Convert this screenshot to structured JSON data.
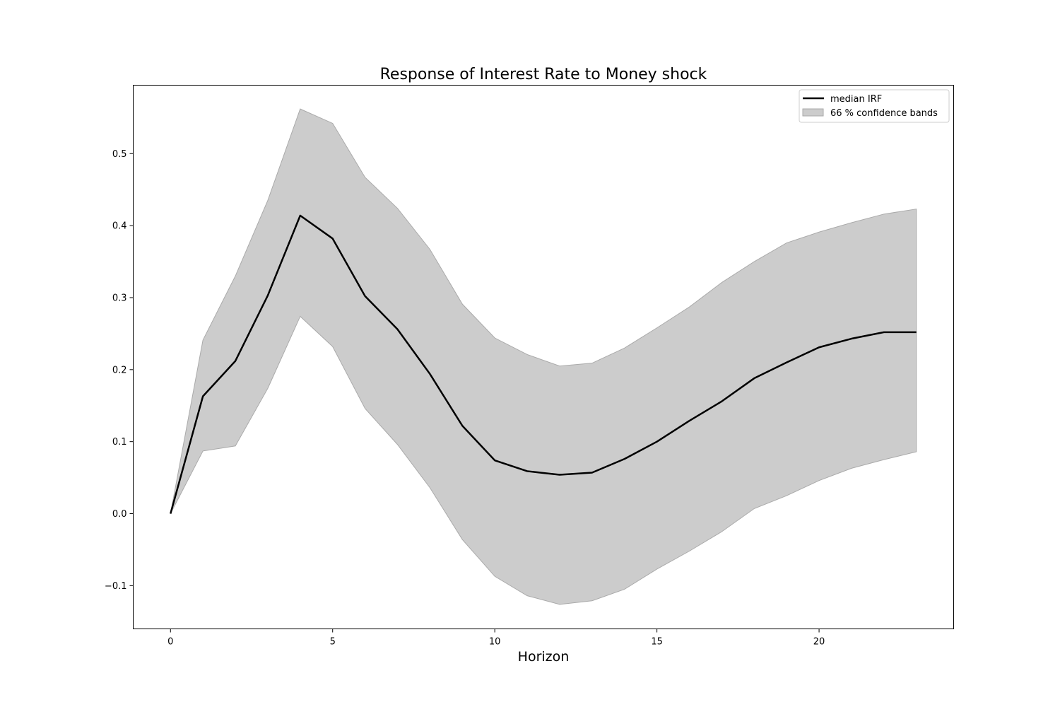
{
  "chart_data": {
    "type": "line",
    "title": "Response of Interest Rate to Money shock",
    "xlabel": "Horizon",
    "ylabel": "",
    "xlim": [
      -1.15,
      24.15
    ],
    "ylim": [
      -0.16,
      0.595
    ],
    "xticks": [
      0,
      5,
      10,
      15,
      20
    ],
    "yticks": [
      -0.1,
      0.0,
      0.1,
      0.2,
      0.3,
      0.4,
      0.5
    ],
    "ytick_labels": [
      "−0.1",
      "0.0",
      "0.1",
      "0.2",
      "0.3",
      "0.4",
      "0.5"
    ],
    "grid": false,
    "legend_position": "top-right",
    "x": [
      0,
      1,
      2,
      3,
      4,
      5,
      6,
      7,
      8,
      9,
      10,
      11,
      12,
      13,
      14,
      15,
      16,
      17,
      18,
      19,
      20,
      21,
      22,
      23
    ],
    "series": [
      {
        "name": "median IRF",
        "color": "#000000",
        "values": [
          0.0,
          0.163,
          0.212,
          0.303,
          0.414,
          0.382,
          0.302,
          0.256,
          0.194,
          0.122,
          0.074,
          0.059,
          0.054,
          0.057,
          0.076,
          0.1,
          0.129,
          0.156,
          0.188,
          0.21,
          0.231,
          0.243,
          0.252,
          0.252
        ]
      }
    ],
    "bands": [
      {
        "name": "66 % confidence bands",
        "color": "#cccccc",
        "edge_color": "#aaaaaa",
        "lower": [
          0.0,
          0.087,
          0.094,
          0.174,
          0.274,
          0.232,
          0.146,
          0.096,
          0.036,
          -0.036,
          -0.087,
          -0.114,
          -0.126,
          -0.121,
          -0.105,
          -0.077,
          -0.052,
          -0.025,
          0.007,
          0.025,
          0.046,
          0.063,
          0.075,
          0.086
        ],
        "upper": [
          0.0,
          0.241,
          0.33,
          0.435,
          0.562,
          0.542,
          0.467,
          0.424,
          0.367,
          0.291,
          0.244,
          0.221,
          0.205,
          0.209,
          0.23,
          0.258,
          0.287,
          0.321,
          0.35,
          0.376,
          0.391,
          0.404,
          0.416,
          0.423
        ]
      }
    ]
  }
}
